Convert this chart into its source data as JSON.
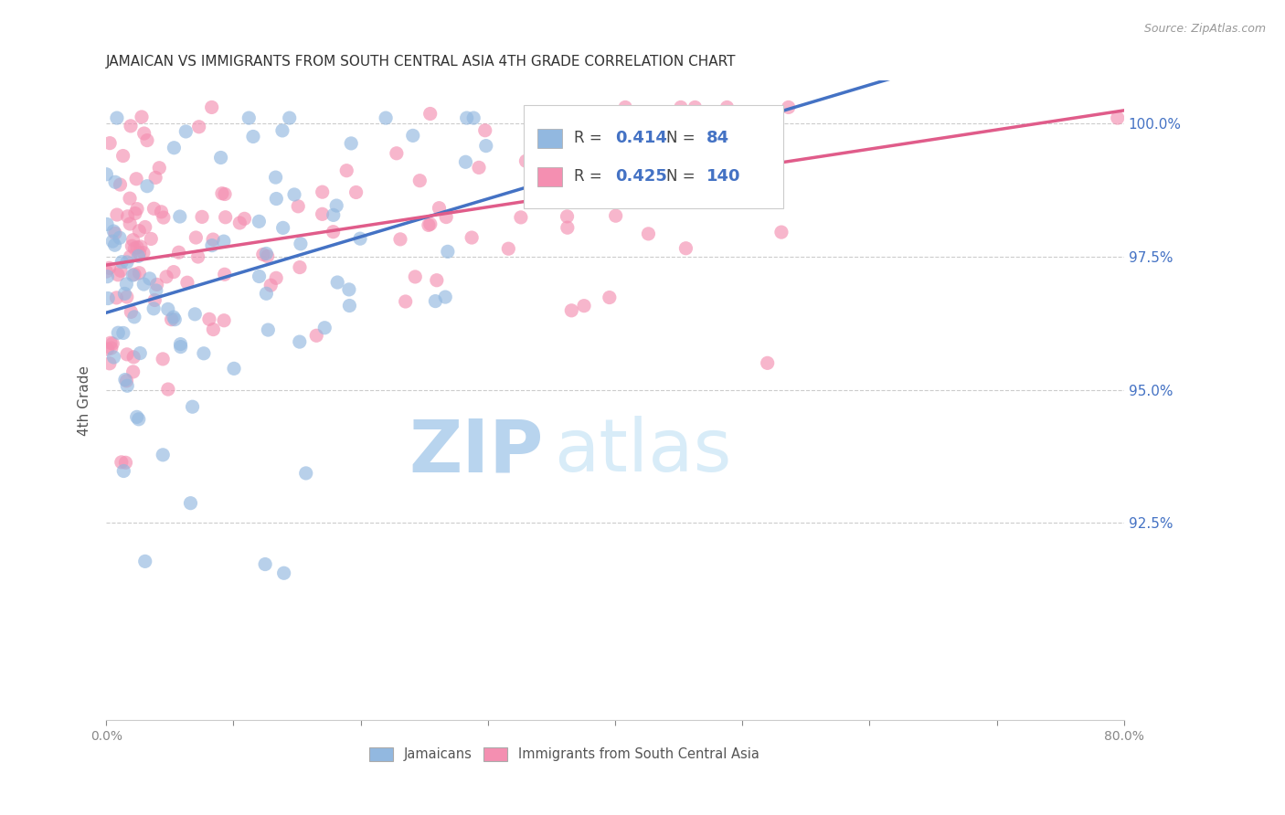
{
  "title": "JAMAICAN VS IMMIGRANTS FROM SOUTH CENTRAL ASIA 4TH GRADE CORRELATION CHART",
  "source": "Source: ZipAtlas.com",
  "ylabel": "4th Grade",
  "ytick_labels": [
    "92.5%",
    "95.0%",
    "97.5%",
    "100.0%"
  ],
  "ytick_values": [
    0.925,
    0.95,
    0.975,
    1.0
  ],
  "xmin": 0.0,
  "xmax": 0.8,
  "ymin": 0.888,
  "ymax": 1.008,
  "legend_blue_R": "0.414",
  "legend_blue_N": "84",
  "legend_pink_R": "0.425",
  "legend_pink_N": "140",
  "blue_color": "#92b8e0",
  "pink_color": "#f48fb1",
  "trend_blue": "#4472c4",
  "trend_pink": "#e05c8a",
  "watermark_zip": "ZIP",
  "watermark_atlas": "atlas",
  "watermark_color_dark": "#b8d4ee",
  "watermark_color_light": "#d8ecf8"
}
